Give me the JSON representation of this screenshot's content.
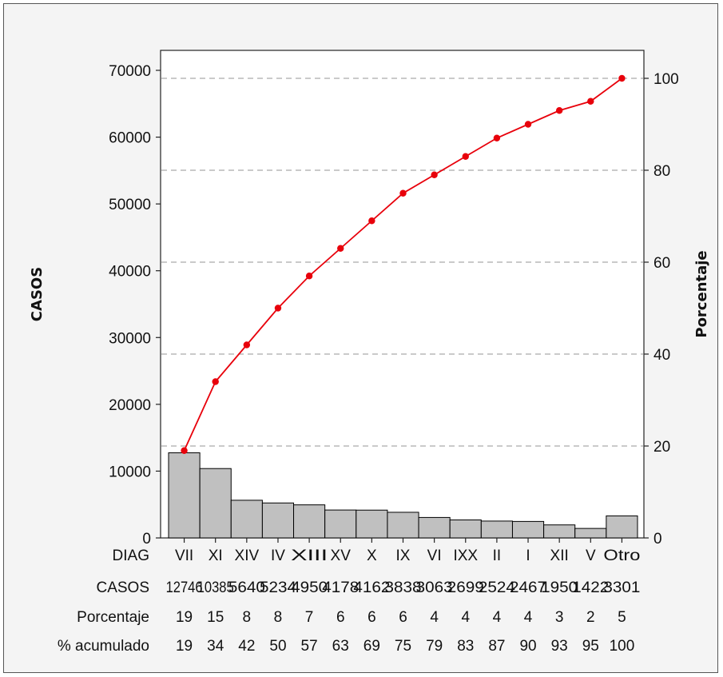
{
  "chart_data": {
    "type": "bar",
    "subtype": "pareto",
    "xlabel": "",
    "ylabel": "CASOS",
    "y2label": "Porcentaje",
    "ylim": [
      0,
      70000
    ],
    "y2lim": [
      0,
      100
    ],
    "yticks": [
      0,
      10000,
      20000,
      30000,
      40000,
      50000,
      60000,
      70000
    ],
    "y2ticks": [
      0,
      20,
      40,
      60,
      80,
      100
    ],
    "grid": "horizontal dashed at right-axis ticks",
    "legend": "none",
    "categories": [
      "VII",
      "XI",
      "XIV",
      "IV",
      "XIII",
      "XV",
      "X",
      "IX",
      "VI",
      "IXX",
      "II",
      "I",
      "XII",
      "V",
      "Otro"
    ],
    "series": [
      {
        "name": "CASOS",
        "type": "bar",
        "values": [
          12746,
          10385,
          5640,
          5234,
          4950,
          4178,
          4162,
          3838,
          3063,
          2699,
          2524,
          2467,
          1950,
          1422,
          3301
        ]
      },
      {
        "name": "% acumulado",
        "type": "line",
        "axis": "right",
        "values": [
          19,
          34,
          42,
          50,
          57,
          63,
          69,
          75,
          79,
          83,
          87,
          90,
          93,
          95,
          100
        ]
      }
    ],
    "table": {
      "row_labels": [
        "DIAG",
        "CASOS",
        "Porcentaje",
        "% acumulado"
      ],
      "diag": [
        "VII",
        "XI",
        "XIV",
        "IV",
        "XIII",
        "XV",
        "X",
        "IX",
        "VI",
        "IXX",
        "II",
        "I",
        "XII",
        "V",
        "Otro"
      ],
      "casos": [
        "12746",
        "10385",
        "5640",
        "5234",
        "4950",
        "4178",
        "4162",
        "3838",
        "3063",
        "2699",
        "2524",
        "2467",
        "1950",
        "1422",
        "3301"
      ],
      "porcentaje": [
        "19",
        "15",
        "8",
        "8",
        "7",
        "6",
        "6",
        "6",
        "4",
        "4",
        "4",
        "4",
        "3",
        "2",
        "5"
      ],
      "acumulado": [
        "19",
        "34",
        "42",
        "50",
        "57",
        "63",
        "69",
        "75",
        "79",
        "83",
        "87",
        "90",
        "93",
        "95",
        "100"
      ]
    },
    "colors": {
      "bar_fill": "#c0c0c0",
      "bar_stroke": "#000000",
      "line": "#e8000b",
      "grid": "#b8b8b8",
      "plot_bg": "#ffffff",
      "frame_bg": "#f4f4f4"
    }
  }
}
